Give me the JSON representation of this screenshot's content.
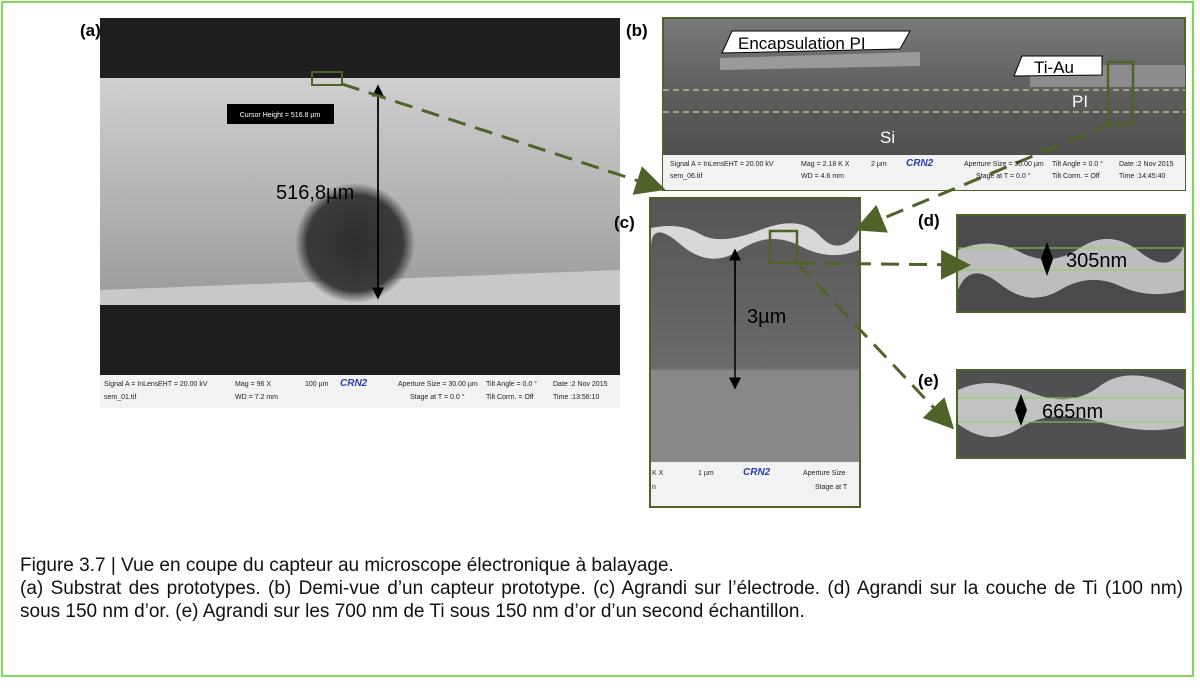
{
  "panels": {
    "a": {
      "label": "(a)",
      "cursor": "Cursor Height = 516.8 µm",
      "measure": "516,8µm",
      "info": [
        "Signal A = InLens",
        "EHT = 20.00 kV",
        "Mag = 96 X",
        "100 µm",
        "CRN2",
        "Aperture Size = 30.00 µm",
        "Tilt Angle = 0.0 °",
        "Date :2 Nov 2015",
        "sem_01.tif",
        "WD = 7.2 mm",
        "Stage at T = 0.0 °",
        "Tilt Corrn. = Off",
        "Time :13:56:10"
      ]
    },
    "b": {
      "label": "(b)",
      "encapsulation": "Encapsulation PI",
      "tiau": "Ti-Au",
      "pi": "PI",
      "si": "Si",
      "info": [
        "Signal A = InLens",
        "EHT = 20.00 kV",
        "Mag = 2.18 K X",
        "2 µm",
        "CRN2",
        "Aperture Size = 30.00 µm",
        "Tilt Angle = 0.0 °",
        "Date :2 Nov 2015",
        "sem_06.tif",
        "WD = 4.6 mm",
        "Stage at T = 0.0 °",
        "Tilt Corrn. = Off",
        "Time :14:45:40"
      ]
    },
    "c": {
      "label": "(c)",
      "measure": "3µm",
      "info": [
        "K X",
        "1 µm",
        "CRN2",
        "Aperture Size",
        "n",
        "Stage at T"
      ]
    },
    "d": {
      "label": "(d)",
      "measure": "305nm"
    },
    "e": {
      "label": "(e)",
      "measure": "665nm"
    }
  },
  "caption": {
    "title": "Figure 3.7 | Vue en coupe du capteur au microscope électronique à balayage.",
    "text": "(a) Substrat des prototypes. (b) Demi-vue d’un capteur prototype. (c) Agrandi sur l’électrode. (d) Agrandi sur la couche de Ti (100 nm) sous 150 nm d’or. (e) Agrandi sur les 700 nm de Ti sous 150 nm d’or d’un second échantillon."
  }
}
